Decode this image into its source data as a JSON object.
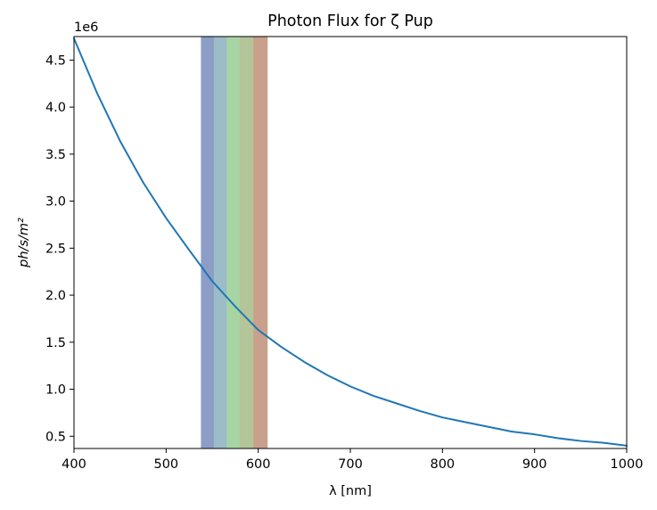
{
  "chart_data": {
    "type": "line",
    "title": "Photon Flux for ζ Pup",
    "xlabel": "λ [nm]",
    "ylabel": "ph/s/m²",
    "y_offset_label": "1e6",
    "xlim": [
      400,
      1000
    ],
    "ylim": [
      0.37,
      4.75
    ],
    "x_ticks": [
      400,
      500,
      600,
      700,
      800,
      900,
      1000
    ],
    "x_tick_labels": [
      "400",
      "500",
      "600",
      "700",
      "800",
      "900",
      "1000"
    ],
    "y_ticks": [
      0.5,
      1.0,
      1.5,
      2.0,
      2.5,
      3.0,
      3.5,
      4.0,
      4.5
    ],
    "y_tick_labels": [
      "0.5",
      "1.0",
      "1.5",
      "2.0",
      "2.5",
      "3.0",
      "3.5",
      "4.0",
      "4.5"
    ],
    "grid": false,
    "series": [
      {
        "color": "#1f77b4",
        "x": [
          400,
          425,
          450,
          475,
          500,
          525,
          550,
          575,
          600,
          625,
          650,
          675,
          700,
          725,
          750,
          775,
          800,
          825,
          850,
          875,
          900,
          925,
          950,
          975,
          1000
        ],
        "y": [
          4.73,
          4.15,
          3.64,
          3.2,
          2.82,
          2.48,
          2.15,
          1.88,
          1.63,
          1.45,
          1.29,
          1.15,
          1.03,
          0.93,
          0.85,
          0.77,
          0.7,
          0.65,
          0.6,
          0.55,
          0.52,
          0.48,
          0.45,
          0.43,
          0.4
        ]
      }
    ],
    "bands": [
      {
        "x0": 538,
        "x1": 552,
        "color": "#8c9dc6"
      },
      {
        "x0": 552,
        "x1": 566,
        "color": "#9cbcc8"
      },
      {
        "x0": 566,
        "x1": 580,
        "color": "#a6d5a3"
      },
      {
        "x0": 580,
        "x1": 595,
        "color": "#b4c59a"
      },
      {
        "x0": 595,
        "x1": 610,
        "color": "#c9a08b"
      }
    ]
  }
}
